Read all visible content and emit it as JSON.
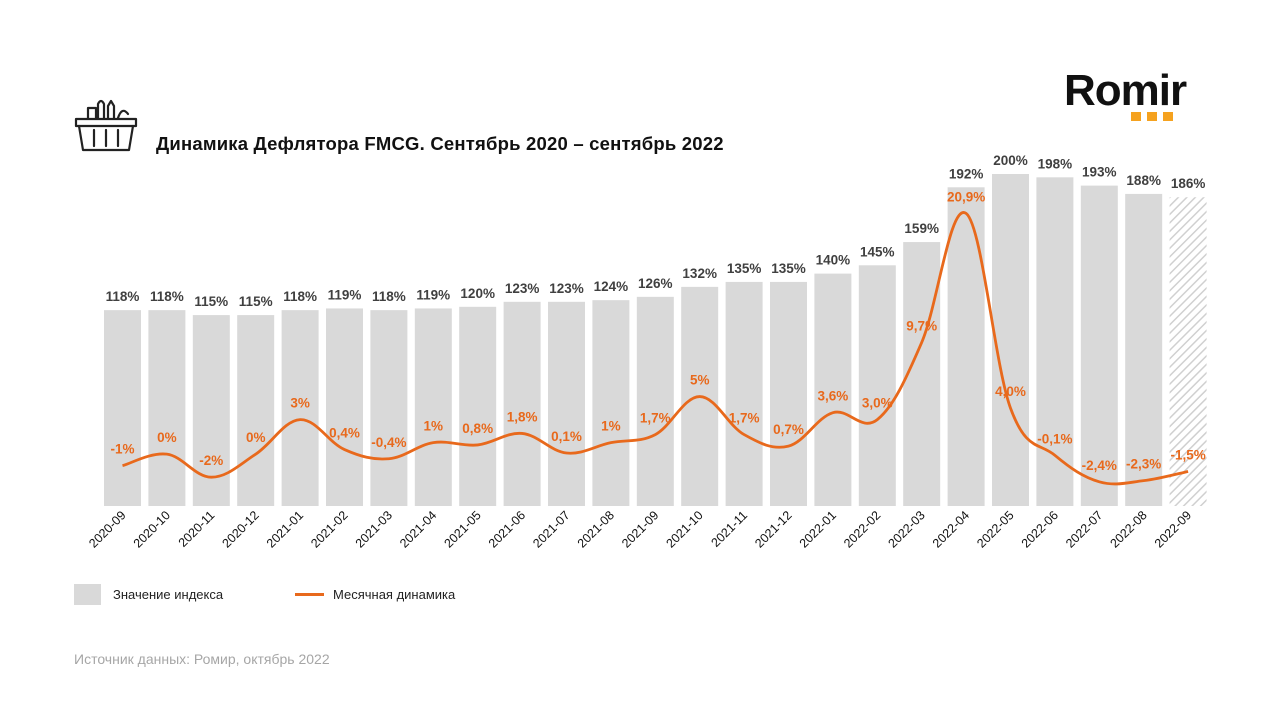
{
  "title": "Динамика Дефлятора FMCG. Сентябрь 2020 – сентябрь 2022",
  "logo_text": "Romir",
  "icons": {
    "basket": "shopping-basket-icon"
  },
  "colors": {
    "bar": "#d9d9d9",
    "line": "#e8691c",
    "label_dark": "#404040",
    "logo_dots": "#f5a21f"
  },
  "chart_data": {
    "type": "bar+line",
    "categories": [
      "2020-09",
      "2020-10",
      "2020-11",
      "2020-12",
      "2021-01",
      "2021-02",
      "2021-03",
      "2021-04",
      "2021-05",
      "2021-06",
      "2021-07",
      "2021-08",
      "2021-09",
      "2021-10",
      "2021-11",
      "2021-12",
      "2022-01",
      "2022-02",
      "2022-03",
      "2022-04",
      "2022-05",
      "2022-06",
      "2022-07",
      "2022-08",
      "2022-09"
    ],
    "series": [
      {
        "name": "Значение индекса",
        "type": "bar",
        "values": [
          118,
          118,
          115,
          115,
          118,
          119,
          118,
          119,
          120,
          123,
          123,
          124,
          126,
          132,
          135,
          135,
          140,
          145,
          159,
          192,
          200,
          198,
          193,
          188,
          186
        ],
        "labels": [
          "118%",
          "118%",
          "115%",
          "115%",
          "118%",
          "119%",
          "118%",
          "119%",
          "120%",
          "123%",
          "123%",
          "124%",
          "126%",
          "132%",
          "135%",
          "135%",
          "140%",
          "145%",
          "159%",
          "192%",
          "200%",
          "198%",
          "193%",
          "188%",
          "186%"
        ],
        "last_bar_hatched": true
      },
      {
        "name": "Месячная динамика",
        "type": "line",
        "values": [
          -1,
          0,
          -2,
          0,
          3,
          0.4,
          -0.4,
          1,
          0.8,
          1.8,
          0.1,
          1,
          1.7,
          5,
          1.7,
          0.7,
          3.6,
          3.0,
          9.7,
          20.9,
          4.0,
          -0.1,
          -2.4,
          -2.3,
          -1.5
        ],
        "labels": [
          "-1%",
          "0%",
          "-2%",
          "0%",
          "3%",
          "0,4%",
          "-0,4%",
          "1%",
          "0,8%",
          "1,8%",
          "0,1%",
          "1%",
          "1,7%",
          "5%",
          "1,7%",
          "0,7%",
          "3,6%",
          "3,0%",
          "9,7%",
          "20,9%",
          "4,0%",
          "-0,1%",
          "-2,4%",
          "-2,3%",
          "-1,5%"
        ]
      }
    ],
    "bar_axis": {
      "min": 0,
      "max": 200
    },
    "line_axis": {
      "min": -4.5,
      "max": 22.5
    },
    "legend_position": "bottom-left",
    "grid": false
  },
  "legend": {
    "index_label": "Значение индекса",
    "line_label": "Месячная динамика"
  },
  "source": "Источник данных: Ромир, октябрь 2022"
}
